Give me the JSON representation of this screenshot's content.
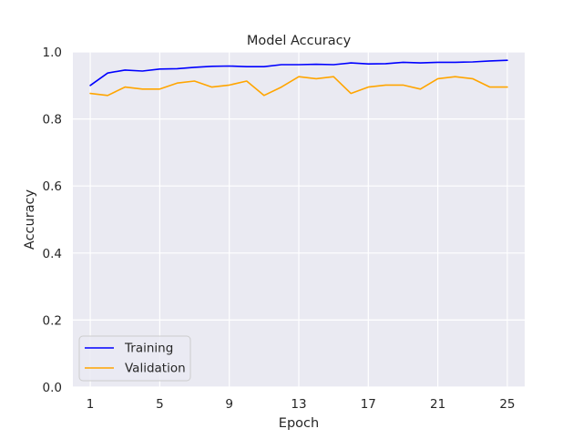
{
  "chart_data": {
    "type": "line",
    "title": "Model Accuracy",
    "xlabel": "Epoch",
    "ylabel": "Accuracy",
    "xlim": [
      0,
      26
    ],
    "ylim": [
      0.0,
      1.0
    ],
    "x_ticks": [
      1,
      5,
      9,
      13,
      17,
      21,
      25
    ],
    "y_ticks": [
      "0.0",
      "0.2",
      "0.4",
      "0.6",
      "0.8",
      "1.0"
    ],
    "grid": true,
    "legend_position": "lower-left",
    "x": [
      1,
      2,
      3,
      4,
      5,
      6,
      7,
      8,
      9,
      10,
      11,
      12,
      13,
      14,
      15,
      16,
      17,
      18,
      19,
      20,
      21,
      22,
      23,
      24,
      25
    ],
    "series": [
      {
        "name": "Training",
        "color": "#0000ff",
        "values": [
          0.9,
          0.937,
          0.946,
          0.943,
          0.949,
          0.95,
          0.954,
          0.957,
          0.958,
          0.956,
          0.956,
          0.962,
          0.962,
          0.963,
          0.962,
          0.967,
          0.964,
          0.965,
          0.969,
          0.967,
          0.969,
          0.969,
          0.97,
          0.973,
          0.975
        ]
      },
      {
        "name": "Validation",
        "color": "#ffa500",
        "values": [
          0.876,
          0.87,
          0.895,
          0.889,
          0.889,
          0.907,
          0.913,
          0.895,
          0.901,
          0.913,
          0.87,
          0.895,
          0.926,
          0.92,
          0.926,
          0.876,
          0.895,
          0.901,
          0.901,
          0.889,
          0.92,
          0.926,
          0.92,
          0.895,
          0.895
        ]
      }
    ]
  }
}
